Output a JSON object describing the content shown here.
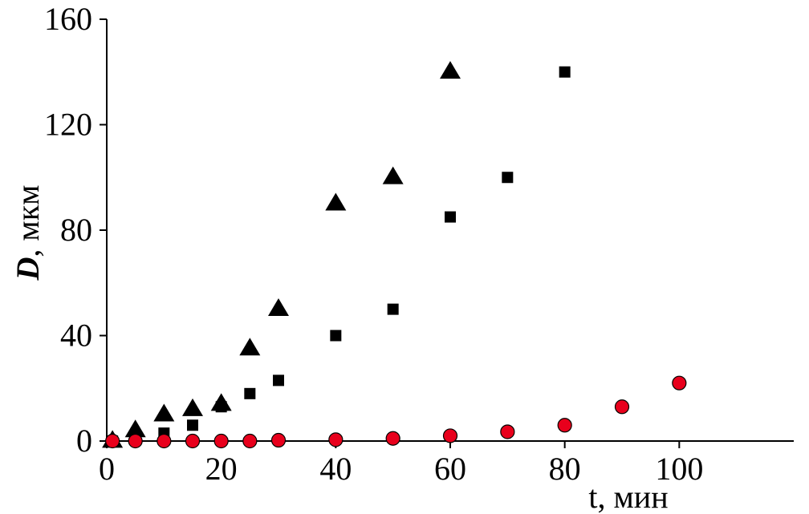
{
  "chart_data": {
    "type": "scatter",
    "xlabel": "t, мин",
    "ylabel_symbol": "D",
    "ylabel_unit": ", мкм",
    "xlim": [
      0,
      120
    ],
    "ylim": [
      0,
      160
    ],
    "xticks": [
      0,
      20,
      40,
      60,
      80,
      100
    ],
    "yticks": [
      0,
      40,
      80,
      120,
      160
    ],
    "xtick_labels": [
      "0",
      "20",
      "40",
      "60",
      "80",
      "100"
    ],
    "ytick_labels": [
      "0",
      "40",
      "80",
      "120",
      "160"
    ],
    "grid": false,
    "series": [
      {
        "marker": "triangle",
        "color": "#000000",
        "points": [
          [
            1,
            0
          ],
          [
            5,
            4
          ],
          [
            10,
            10
          ],
          [
            15,
            12
          ],
          [
            20,
            14
          ],
          [
            25,
            35
          ],
          [
            30,
            50
          ],
          [
            40,
            90
          ],
          [
            50,
            100
          ],
          [
            60,
            140
          ]
        ]
      },
      {
        "marker": "square",
        "color": "#000000",
        "points": [
          [
            1,
            0
          ],
          [
            5,
            0.5
          ],
          [
            10,
            3
          ],
          [
            15,
            6
          ],
          [
            20,
            13
          ],
          [
            25,
            18
          ],
          [
            30,
            23
          ],
          [
            40,
            40
          ],
          [
            50,
            50
          ],
          [
            60,
            85
          ],
          [
            70,
            100
          ],
          [
            80,
            140
          ]
        ]
      },
      {
        "marker": "circle",
        "color": "#e8001c",
        "points": [
          [
            1,
            0
          ],
          [
            5,
            0
          ],
          [
            10,
            0
          ],
          [
            15,
            0
          ],
          [
            20,
            0
          ],
          [
            25,
            0
          ],
          [
            30,
            0.3
          ],
          [
            40,
            0.5
          ],
          [
            50,
            1
          ],
          [
            60,
            2
          ],
          [
            70,
            3.5
          ],
          [
            80,
            6
          ],
          [
            90,
            13
          ],
          [
            100,
            22
          ]
        ]
      }
    ]
  }
}
